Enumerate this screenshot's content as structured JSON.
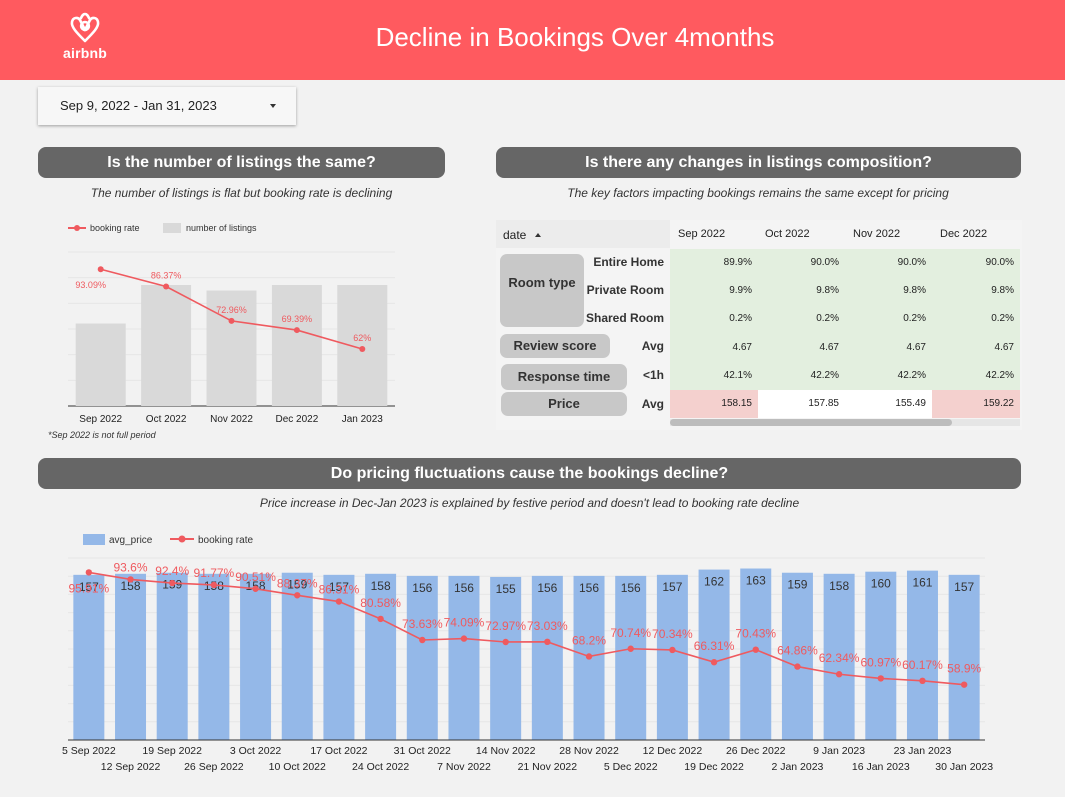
{
  "header": {
    "logo_text": "airbnb",
    "title": "Decline in Bookings Over 4months",
    "bg_color": "#ff5a5f"
  },
  "date_range": {
    "value": "Sep 9, 2022 - Jan 31, 2023"
  },
  "sections": {
    "listings": {
      "title": "Is the number of listings the same?",
      "subtitle": "The number of listings is flat but booking rate is declining",
      "note": "*Sep 2022 is not full period"
    },
    "composition": {
      "title": "Is there any changes in listings composition?",
      "subtitle": "The key factors impacting bookings remains the same except for pricing"
    },
    "pricing": {
      "title": "Do pricing fluctuations cause the bookings decline?",
      "subtitle": "Price increase in Dec-Jan 2023 is explained by festive period and doesn't lead to booking rate decline"
    }
  },
  "table": {
    "sort_header": "date",
    "columns": [
      "Sep 2022",
      "Oct 2022",
      "Nov 2022",
      "Dec 2022"
    ],
    "groups": {
      "room_type": "Room type",
      "review_score": "Review score",
      "response_time": "Response time",
      "price": "Price"
    },
    "rows": [
      {
        "label": "Entire Home",
        "values": [
          "89.9%",
          "90.0%",
          "90.0%",
          "90.0%"
        ]
      },
      {
        "label": "Private Room",
        "values": [
          "9.9%",
          "9.8%",
          "9.8%",
          "9.8%"
        ]
      },
      {
        "label": "Shared Room",
        "values": [
          "0.2%",
          "0.2%",
          "0.2%",
          "0.2%"
        ]
      },
      {
        "label": "Avg",
        "values": [
          "4.67",
          "4.67",
          "4.67",
          "4.67"
        ]
      },
      {
        "label": "<1h",
        "values": [
          "42.1%",
          "42.2%",
          "42.2%",
          "42.2%"
        ]
      },
      {
        "label": "Avg",
        "values": [
          "158.15",
          "157.85",
          "155.49",
          "159.22"
        ]
      }
    ],
    "colors": {
      "green": "#e3efdf",
      "red": "#f4d0ce",
      "white": "#ffffff"
    }
  },
  "chart_data": [
    {
      "type": "bar",
      "categories": [
        "Sep 2022",
        "Oct 2022",
        "Nov 2022",
        "Dec 2022",
        "Jan 2023"
      ],
      "series": [
        {
          "name": "number of listings",
          "type": "bar",
          "values": [
            30,
            44,
            42,
            44,
            44
          ],
          "color": "#d9d9d9"
        },
        {
          "name": "booking rate",
          "type": "line",
          "values": [
            93.09,
            86.37,
            72.96,
            69.39,
            62
          ],
          "labels": [
            "93.09%",
            "86.37%",
            "72.96%",
            "69.39%",
            "62%"
          ],
          "color": "#ef5a5f"
        }
      ],
      "grid": true,
      "legend_position": "top-left"
    },
    {
      "type": "bar",
      "categories": [
        "5 Sep 2022",
        "12 Sep 2022",
        "19 Sep 2022",
        "26 Sep 2022",
        "3 Oct 2022",
        "10 Oct 2022",
        "17 Oct 2022",
        "24 Oct 2022",
        "31 Oct 2022",
        "7 Nov 2022",
        "14 Nov 2022",
        "21 Nov 2022",
        "28 Nov 2022",
        "5 Dec 2022",
        "12 Dec 2022",
        "19 Dec 2022",
        "26 Dec 2022",
        "2 Jan 2023",
        "9 Jan 2023",
        "16 Jan 2023",
        "23 Jan 2023",
        "30 Jan 2023"
      ],
      "series": [
        {
          "name": "avg_price",
          "type": "bar",
          "values": [
            157,
            158,
            159,
            158,
            158,
            159,
            157,
            158,
            156,
            156,
            155,
            156,
            156,
            156,
            157,
            162,
            163,
            159,
            158,
            160,
            161,
            157
          ],
          "color": "#94b8e8"
        },
        {
          "name": "booking rate",
          "type": "line",
          "values": [
            95.91,
            93.6,
            92.4,
            91.77,
            90.51,
            88.37,
            86.31,
            80.58,
            73.63,
            74.09,
            72.97,
            73.03,
            68.2,
            70.74,
            70.34,
            66.31,
            70.43,
            64.86,
            62.34,
            60.97,
            60.17,
            58.9
          ],
          "labels": [
            "95.91%",
            "93.6%",
            "92.4%",
            "91.77%",
            "90.51%",
            "88.37%",
            "86.31%",
            "80.58%",
            "73.63%",
            "74.09%",
            "72.97%",
            "73.03%",
            "68.2%",
            "70.74%",
            "70.34%",
            "66.31%",
            "70.43%",
            "64.86%",
            "62.34%",
            "60.97%",
            "60.17%",
            "58.9%"
          ],
          "color": "#ef5a5f"
        }
      ],
      "grid": true,
      "legend_position": "top-left"
    }
  ]
}
